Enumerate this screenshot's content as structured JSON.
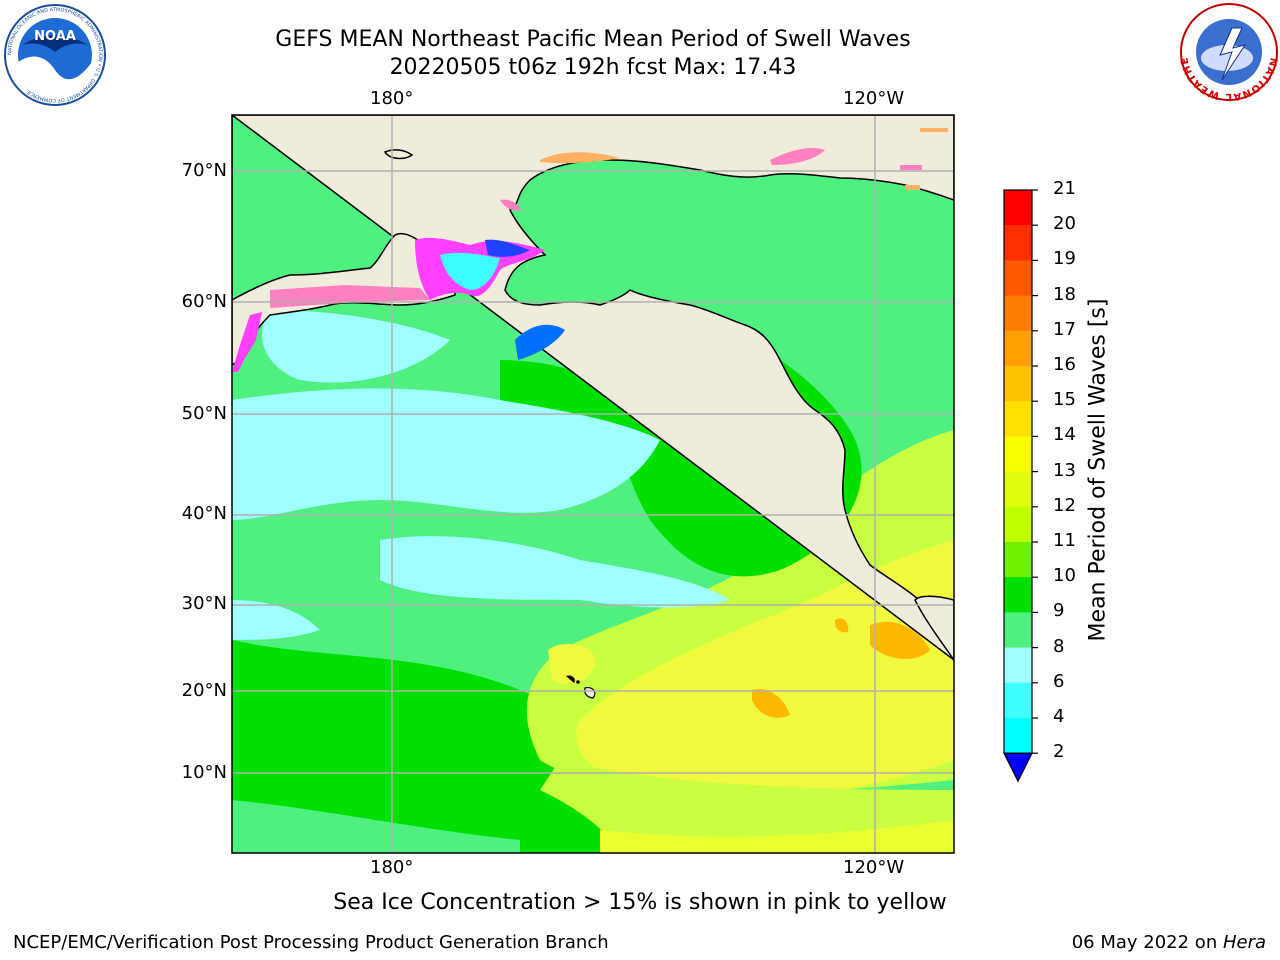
{
  "header": {
    "title_line1": "GEFS MEAN Northeast Pacific Mean Period of Swell Waves",
    "title_line2": "20220505 t06z 192h fcst   Max: 17.43"
  },
  "axes": {
    "lon_labels": [
      "180°",
      "120°W"
    ],
    "lat_labels": [
      "70°N",
      "60°N",
      "50°N",
      "40°N",
      "30°N",
      "20°N",
      "10°N"
    ]
  },
  "colorbar": {
    "title": "Mean Period of Swell Waves [s]",
    "ticks": [
      "21",
      "20",
      "19",
      "18",
      "17",
      "16",
      "15",
      "14",
      "13",
      "12",
      "11",
      "10",
      "9",
      "8",
      "6",
      "4",
      "2"
    ],
    "colors": [
      "#ff0000",
      "#ff3000",
      "#ff5a00",
      "#ff7e00",
      "#ffa000",
      "#ffc000",
      "#ffe000",
      "#f8ff00",
      "#e0ff10",
      "#c0ff00",
      "#70f000",
      "#00e000",
      "#50f080",
      "#a0ffff",
      "#40ffff",
      "#00ffff",
      "#00c0ff",
      "#0070ff",
      "#0000ff"
    ]
  },
  "map": {
    "land_color": "#efecdc",
    "ocean_colors": {
      "cyan": "#a0ffff",
      "mint": "#50f080",
      "green": "#00e000",
      "yellow_green": "#c8ff40",
      "yellow": "#f0f840",
      "orange": "#ffb800"
    },
    "ice_colors": [
      "#ff40ff",
      "#ff80c0",
      "#ffb060",
      "#2040ff"
    ]
  },
  "footer": {
    "note": "Sea Ice Concentration > 15% is shown in pink to yellow",
    "credit_left": "NCEP/EMC/Verification Post Processing Product Generation Branch",
    "date": "06 May 2022 on ",
    "host": "Hera"
  },
  "logos": {
    "noaa_text": "NOAA",
    "noaa_ring": "NATIONAL OCEANIC AND ATMOSPHERIC ADMINISTRATION • U.S. DEPARTMENT OF COMMERCE",
    "nws_ring": "NATIONAL WEATHER SERVICE"
  }
}
